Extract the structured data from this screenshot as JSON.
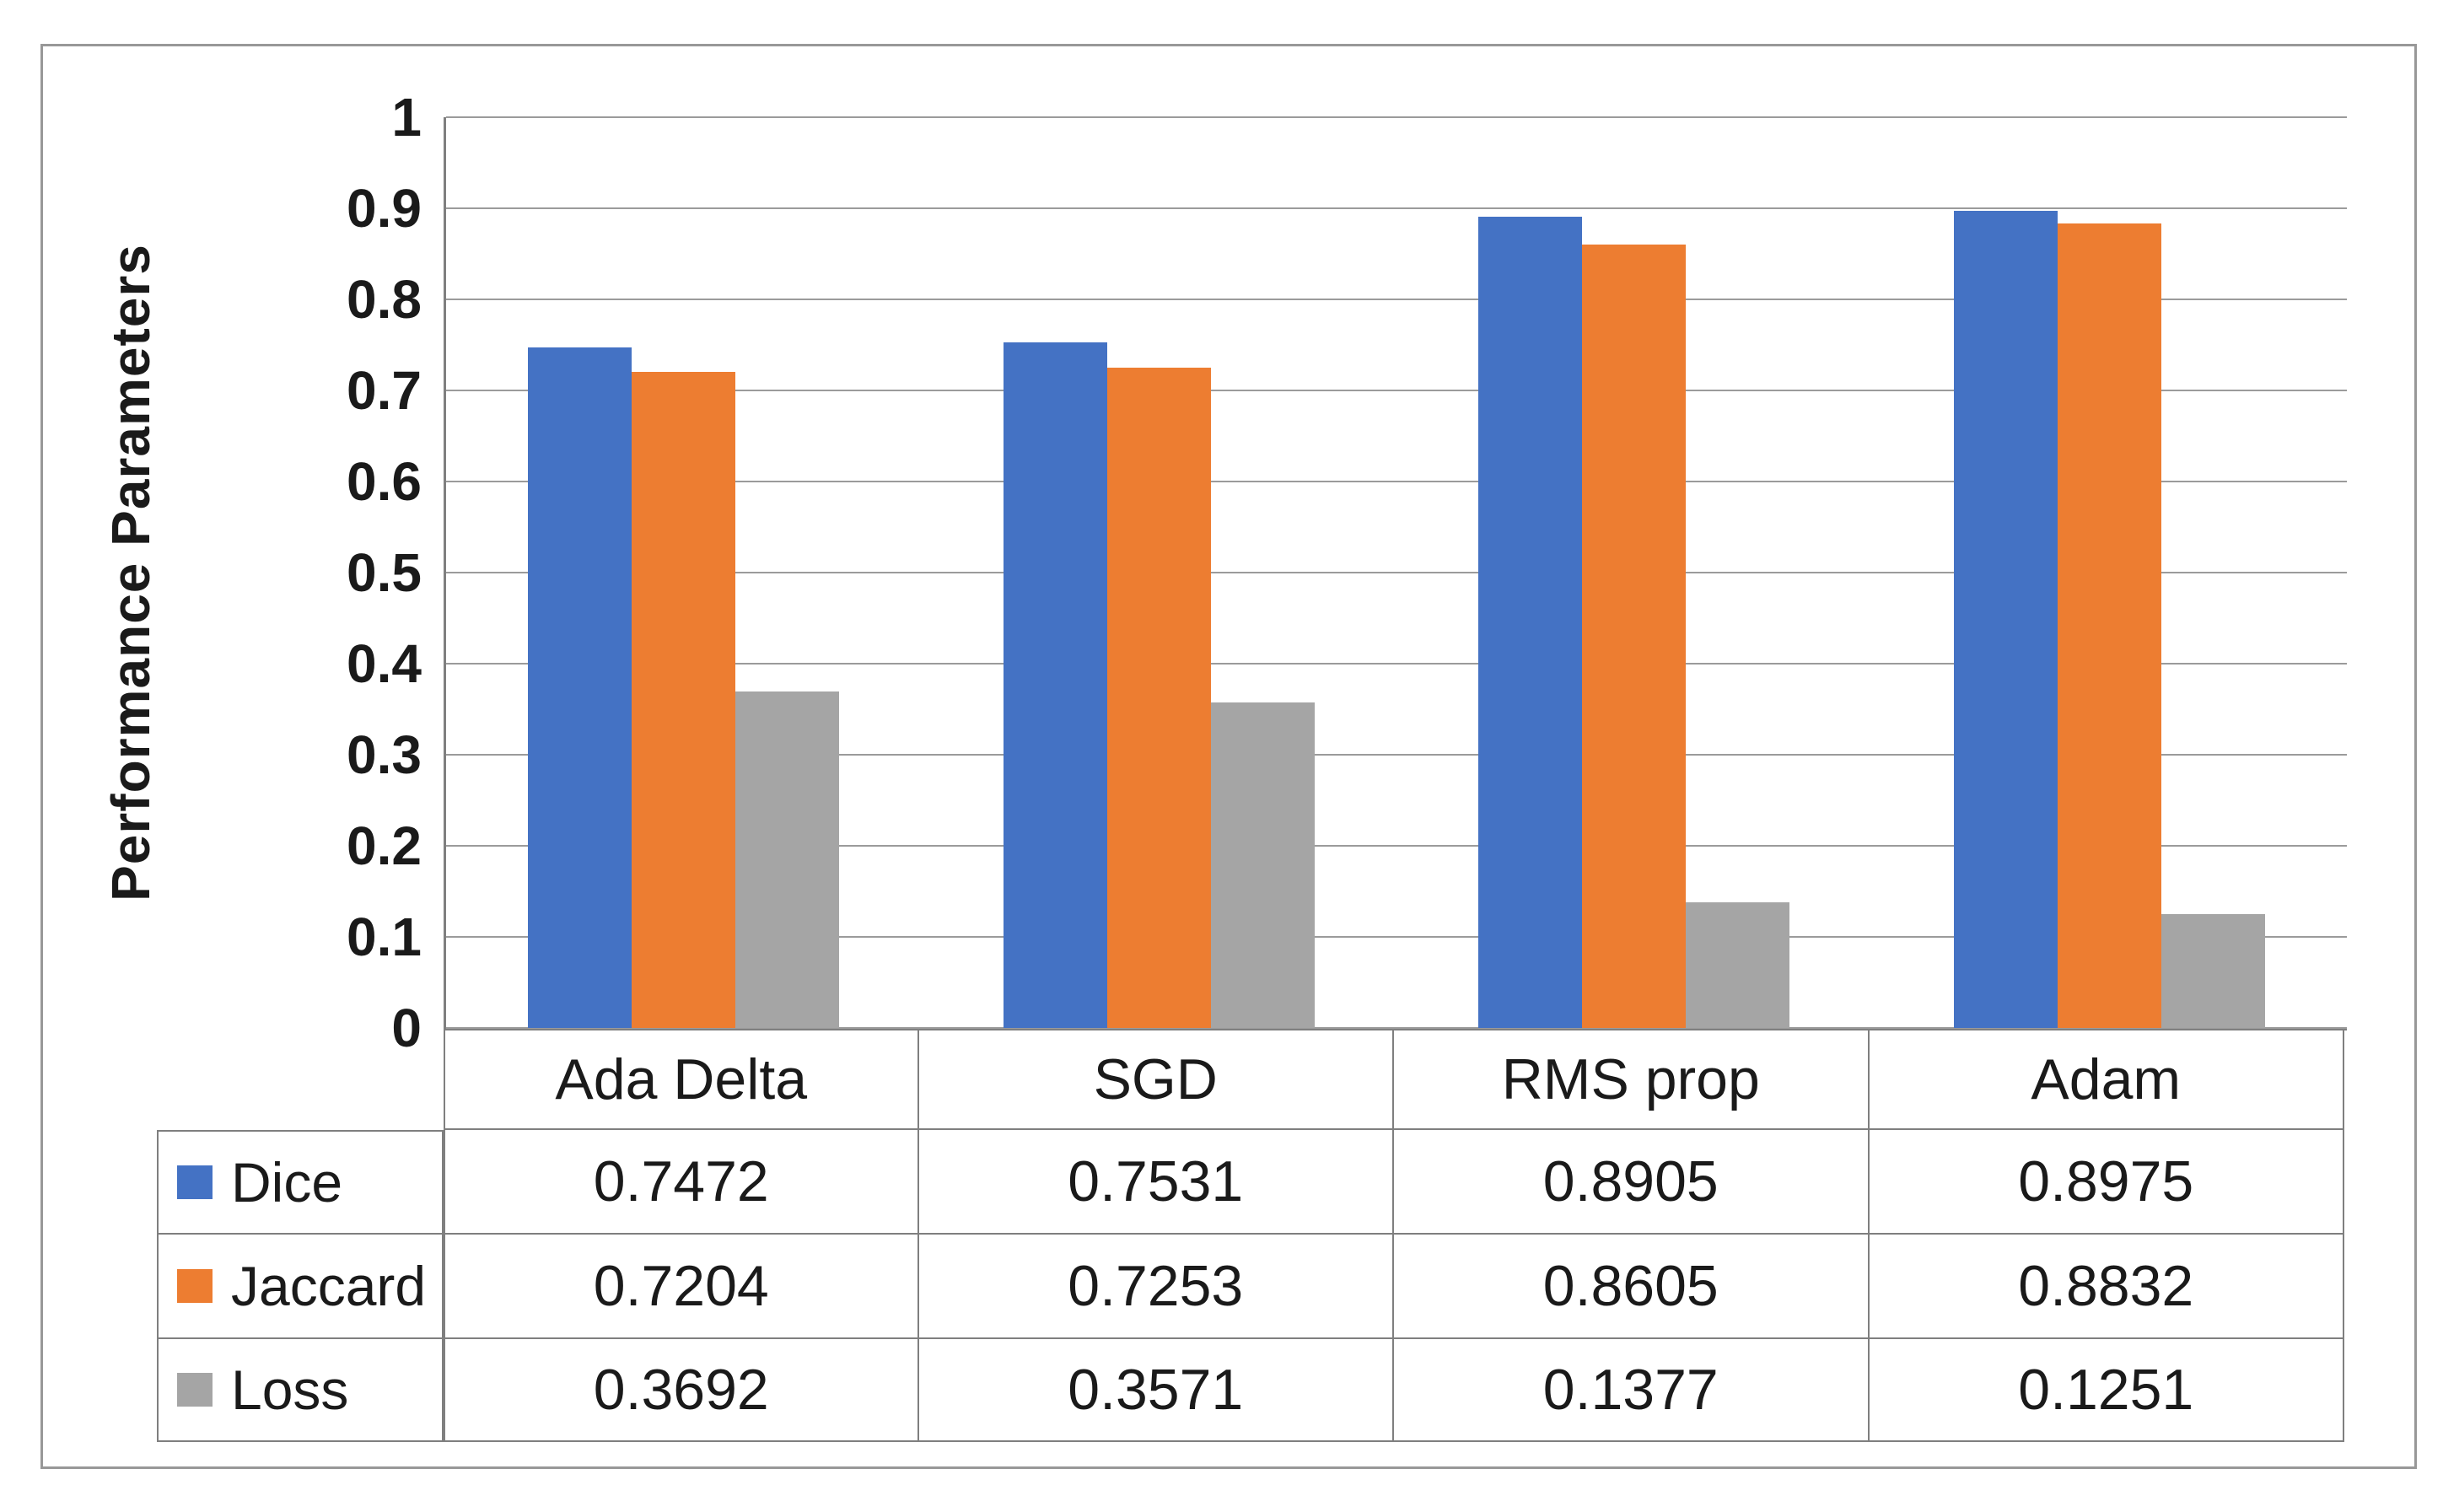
{
  "figure": {
    "background": "#ffffff",
    "border_color": "#989898"
  },
  "chart_data": {
    "type": "bar",
    "title": "",
    "xlabel": "",
    "ylabel": "Performance Parameters",
    "categories": [
      "Ada Delta",
      "SGD",
      "RMS prop",
      "Adam"
    ],
    "series": [
      {
        "name": "Dice",
        "color": "#4472C4",
        "values": [
          0.7472,
          0.7531,
          0.8905,
          0.8975
        ]
      },
      {
        "name": "Jaccard",
        "color": "#ED7D31",
        "values": [
          0.7204,
          0.7253,
          0.8605,
          0.8832
        ]
      },
      {
        "name": "Loss",
        "color": "#A5A5A5",
        "values": [
          0.3692,
          0.3571,
          0.1377,
          0.1251
        ]
      }
    ],
    "ylim": [
      0,
      1
    ],
    "ytick_step": 0.1,
    "yticks": [
      "1",
      "0.9",
      "0.8",
      "0.7",
      "0.6",
      "0.5",
      "0.4",
      "0.3",
      "0.2",
      "0.1",
      "0"
    ],
    "grid": "horizontal-major",
    "legend_position": "table-rows-left",
    "axis_color": "#7f7f7f",
    "gridline_color": "#9b9b9b",
    "table_border_color": "#7f7f7f",
    "text_color": "#1a1a1a"
  }
}
